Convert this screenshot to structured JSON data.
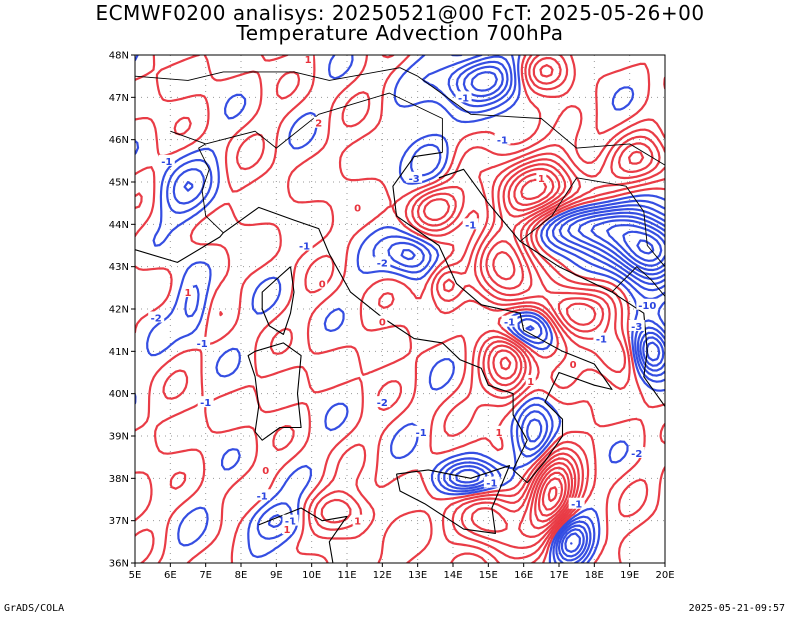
{
  "title_line1": "ECMWF0200 analisys: 20250521@00 FcT: 2025-05-26+00",
  "title_line2": "Temperature Advection 700hPa",
  "footer_left": "GrADS/COLA",
  "footer_right": "2025-05-21-09:57",
  "colors": {
    "positive_contour": "#e8323c",
    "negative_contour": "#2a44e0",
    "coastline": "#000000",
    "grid": "#999999"
  },
  "chart_data": {
    "type": "contour",
    "title": "Temperature Advection 700hPa",
    "xlabel": "",
    "ylabel": "",
    "xlim": [
      5,
      20
    ],
    "ylim": [
      36,
      48
    ],
    "grid": true,
    "x_ticks": [
      "5E",
      "6E",
      "7E",
      "8E",
      "9E",
      "10E",
      "11E",
      "12E",
      "13E",
      "14E",
      "15E",
      "16E",
      "17E",
      "18E",
      "19E",
      "20E"
    ],
    "y_ticks": [
      "36N",
      "37N",
      "38N",
      "39N",
      "40N",
      "41N",
      "42N",
      "43N",
      "44N",
      "45N",
      "46N",
      "47N",
      "48N"
    ],
    "series": [
      {
        "name": "",
        "sign": "positive",
        "color": "#e8323c"
      },
      {
        "name": "",
        "sign": "negative",
        "color": "#2a44e0"
      }
    ],
    "contour_labels": [
      {
        "lon": 9.9,
        "lat": 47.9,
        "text": "1"
      },
      {
        "lon": 10.2,
        "lat": 46.4,
        "text": "2"
      },
      {
        "lon": 14.3,
        "lat": 47.0,
        "text": "-1"
      },
      {
        "lon": 15.4,
        "lat": 46.0,
        "text": "-1"
      },
      {
        "lon": 5.9,
        "lat": 45.5,
        "text": "-1"
      },
      {
        "lon": 12.9,
        "lat": 45.1,
        "text": "-3"
      },
      {
        "lon": 11.3,
        "lat": 44.4,
        "text": "0"
      },
      {
        "lon": 16.5,
        "lat": 45.1,
        "text": "1"
      },
      {
        "lon": 14.5,
        "lat": 44.0,
        "text": "-1"
      },
      {
        "lon": 9.8,
        "lat": 43.5,
        "text": "-1"
      },
      {
        "lon": 12.0,
        "lat": 43.1,
        "text": "-2"
      },
      {
        "lon": 19.5,
        "lat": 42.1,
        "text": "-10"
      },
      {
        "lon": 5.6,
        "lat": 41.8,
        "text": "-2"
      },
      {
        "lon": 6.9,
        "lat": 41.2,
        "text": "-1"
      },
      {
        "lon": 6.5,
        "lat": 42.4,
        "text": "1"
      },
      {
        "lon": 10.3,
        "lat": 42.6,
        "text": "0"
      },
      {
        "lon": 15.6,
        "lat": 41.7,
        "text": "-1"
      },
      {
        "lon": 18.2,
        "lat": 41.3,
        "text": "-1"
      },
      {
        "lon": 19.2,
        "lat": 41.6,
        "text": "-3"
      },
      {
        "lon": 12.0,
        "lat": 41.7,
        "text": "0"
      },
      {
        "lon": 17.4,
        "lat": 40.7,
        "text": "0"
      },
      {
        "lon": 16.2,
        "lat": 40.3,
        "text": "1"
      },
      {
        "lon": 7.0,
        "lat": 39.8,
        "text": "-1"
      },
      {
        "lon": 12.0,
        "lat": 39.8,
        "text": "-2"
      },
      {
        "lon": 13.1,
        "lat": 39.1,
        "text": "-1"
      },
      {
        "lon": 15.3,
        "lat": 39.1,
        "text": "1"
      },
      {
        "lon": 19.2,
        "lat": 38.6,
        "text": "-2"
      },
      {
        "lon": 8.7,
        "lat": 38.2,
        "text": "0"
      },
      {
        "lon": 15.1,
        "lat": 37.9,
        "text": "-1"
      },
      {
        "lon": 8.6,
        "lat": 37.6,
        "text": "-1"
      },
      {
        "lon": 9.4,
        "lat": 37.0,
        "text": "-1"
      },
      {
        "lon": 9.3,
        "lat": 36.8,
        "text": "1"
      },
      {
        "lon": 11.3,
        "lat": 37.0,
        "text": "1"
      },
      {
        "lon": 17.5,
        "lat": 37.4,
        "text": "-1"
      }
    ]
  }
}
